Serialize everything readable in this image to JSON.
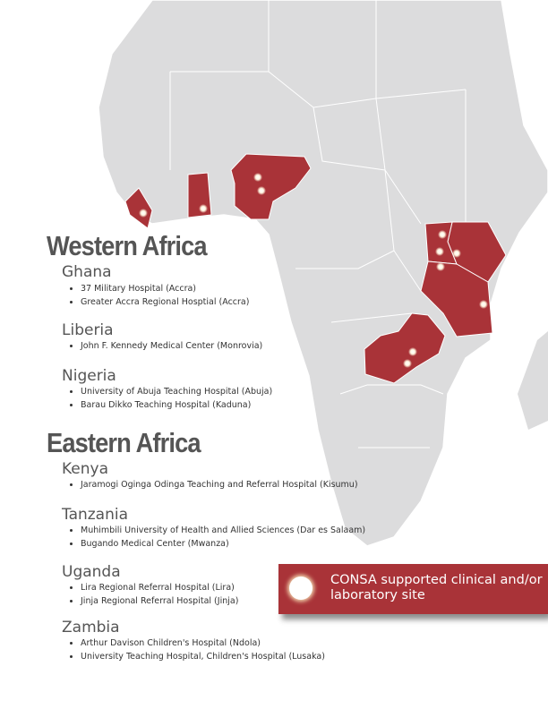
{
  "colors": {
    "land": "#dcdcdd",
    "highlight": "#a93338",
    "border": "#ffffff"
  },
  "regions": [
    {
      "title": "Western Africa",
      "countries": [
        {
          "name": "Ghana",
          "sites": [
            "37 Military Hospital (Accra)",
            "Greater Accra Regional Hosptial (Accra)"
          ]
        },
        {
          "name": "Liberia",
          "sites": [
            "John F. Kennedy Medical Center (Monrovia)"
          ]
        },
        {
          "name": "Nigeria",
          "sites": [
            "University of Abuja Teaching Hospital (Abuja)",
            "Barau Dikko Teaching Hospital (Kaduna)"
          ]
        }
      ]
    },
    {
      "title": "Eastern Africa",
      "countries": [
        {
          "name": "Kenya",
          "sites": [
            "Jaramogi Oginga Odinga Teaching and Referral Hospital (Kisumu)"
          ]
        },
        {
          "name": "Tanzania",
          "sites": [
            "Muhimbili University of Health and Allied Sciences (Dar es Salaam)",
            "Bugando Medical Center (Mwanza)"
          ]
        },
        {
          "name": "Uganda",
          "sites": [
            "Lira Regional Referral Hospital (Lira)",
            "Jinja Regional Referral Hospital (Jinja)"
          ]
        },
        {
          "name": "Zambia",
          "sites": [
            "Arthur Davison Children's Hospital (Ndola)",
            "University Teaching Hospital, Children's Hospital (Lusaka)"
          ]
        }
      ]
    }
  ],
  "legend": {
    "label": "CONSA supported clinical and/or laboratory site",
    "icon": "site-dot-icon"
  }
}
